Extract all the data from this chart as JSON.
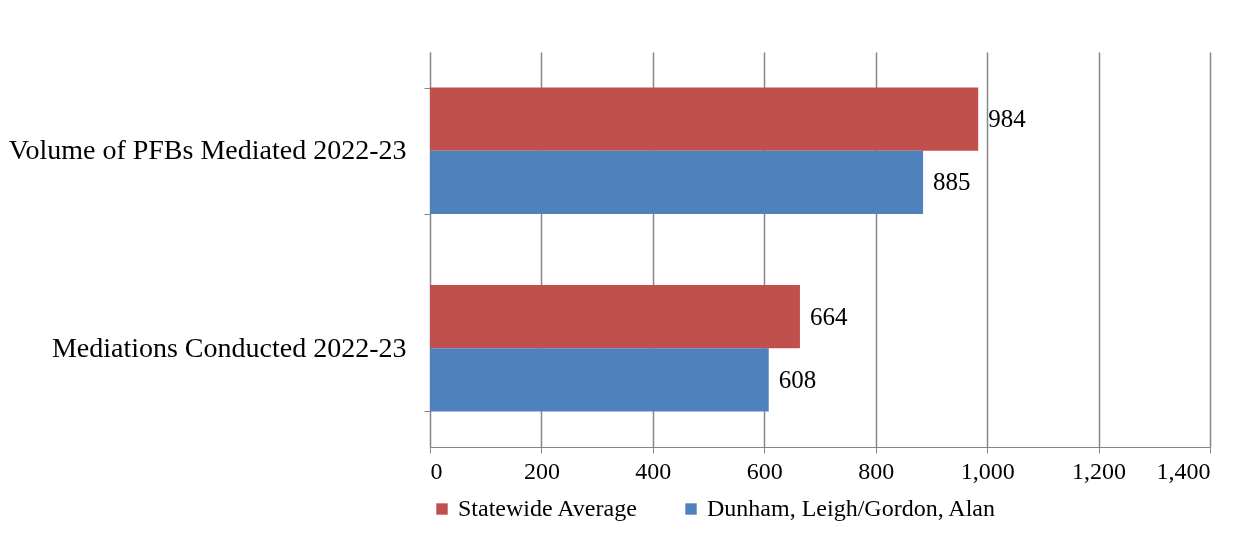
{
  "chart_data": {
    "type": "bar",
    "orientation": "horizontal",
    "categories": [
      "Volume of PFBs Mediated 2022-23",
      "Mediations Conducted 2022-23"
    ],
    "series": [
      {
        "name": "Statewide Average",
        "color": "#c0504d",
        "values": [
          984,
          664
        ]
      },
      {
        "name": "Dunham, Leigh/Gordon, Alan",
        "color": "#4f81bd",
        "values": [
          885,
          608
        ]
      }
    ],
    "xlim": [
      0,
      1400
    ],
    "xticks": [
      0,
      200,
      400,
      600,
      800,
      {
        "value": 1000,
        "label": "1,000"
      },
      {
        "value": 1200,
        "label": "1,200"
      },
      {
        "value": 1400,
        "label": "1,400"
      }
    ],
    "grid": "x",
    "legend": "bottom",
    "data_labels": true
  }
}
